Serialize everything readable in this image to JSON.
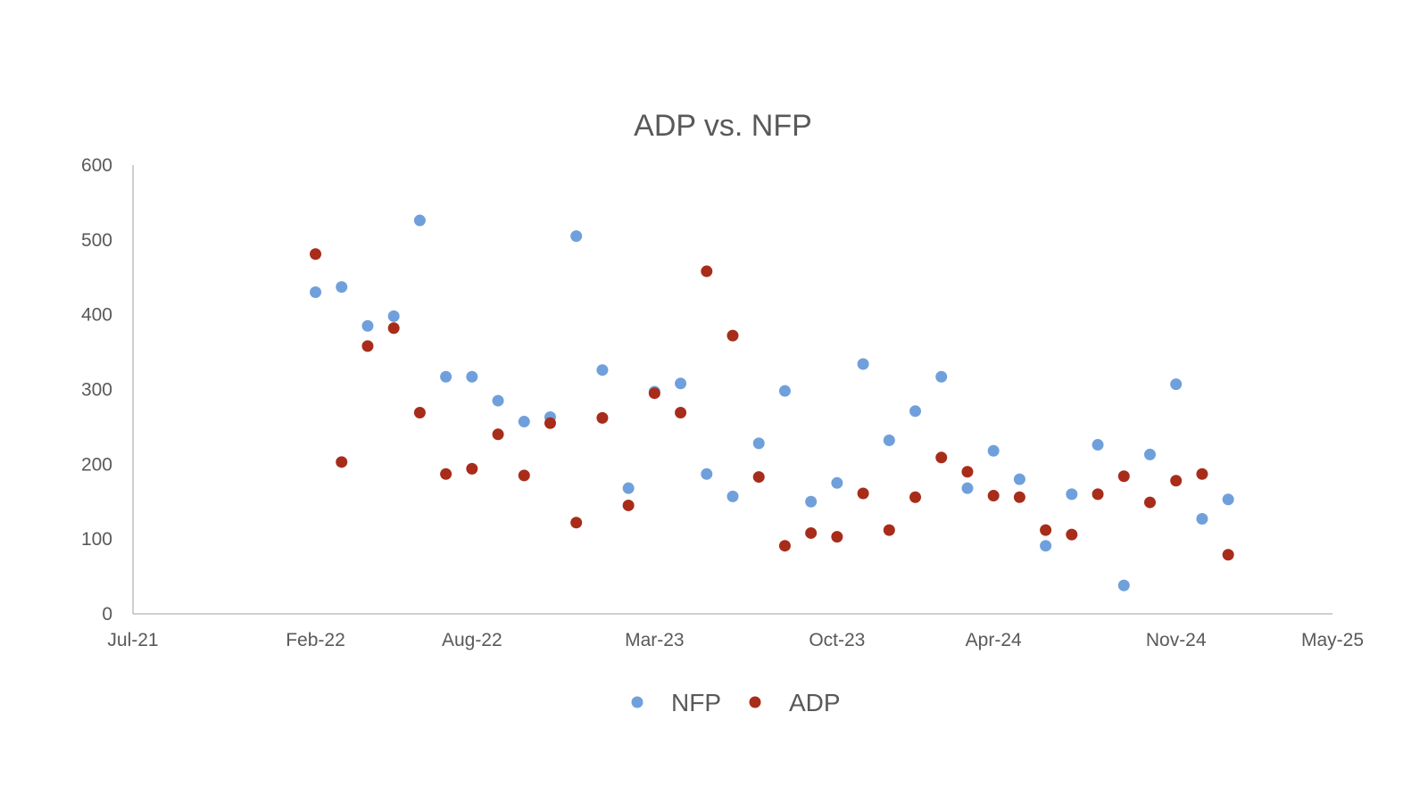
{
  "chart_data": {
    "type": "scatter",
    "title": "ADP vs. NFP",
    "xlabel": "",
    "ylabel": "",
    "ylim": [
      0,
      600
    ],
    "yticks": [
      0,
      100,
      200,
      300,
      400,
      500,
      600
    ],
    "xlim": [
      0,
      46
    ],
    "x_unit": "months since Jul-21",
    "xticks": [
      {
        "value": 0,
        "label": "Jul-21"
      },
      {
        "value": 7,
        "label": "Feb-22"
      },
      {
        "value": 13,
        "label": "Aug-22"
      },
      {
        "value": 20,
        "label": "Mar-23"
      },
      {
        "value": 27,
        "label": "Oct-23"
      },
      {
        "value": 33,
        "label": "Apr-24"
      },
      {
        "value": 40,
        "label": "Nov-24"
      },
      {
        "value": 46,
        "label": "May-25"
      }
    ],
    "grid": false,
    "legend": "bottom-center",
    "series": [
      {
        "name": "NFP",
        "color": "#6fa0dc",
        "points": [
          {
            "x": 7,
            "y": 430
          },
          {
            "x": 8,
            "y": 437
          },
          {
            "x": 9,
            "y": 385
          },
          {
            "x": 10,
            "y": 398
          },
          {
            "x": 11,
            "y": 526
          },
          {
            "x": 12,
            "y": 317
          },
          {
            "x": 13,
            "y": 317
          },
          {
            "x": 14,
            "y": 285
          },
          {
            "x": 15,
            "y": 257
          },
          {
            "x": 16,
            "y": 263
          },
          {
            "x": 17,
            "y": 505
          },
          {
            "x": 18,
            "y": 326
          },
          {
            "x": 19,
            "y": 168
          },
          {
            "x": 20,
            "y": 297
          },
          {
            "x": 21,
            "y": 308
          },
          {
            "x": 22,
            "y": 187
          },
          {
            "x": 23,
            "y": 157
          },
          {
            "x": 24,
            "y": 228
          },
          {
            "x": 25,
            "y": 298
          },
          {
            "x": 26,
            "y": 150
          },
          {
            "x": 27,
            "y": 175
          },
          {
            "x": 28,
            "y": 334
          },
          {
            "x": 29,
            "y": 232
          },
          {
            "x": 30,
            "y": 271
          },
          {
            "x": 31,
            "y": 317
          },
          {
            "x": 32,
            "y": 168
          },
          {
            "x": 33,
            "y": 218
          },
          {
            "x": 34,
            "y": 180
          },
          {
            "x": 35,
            "y": 91
          },
          {
            "x": 36,
            "y": 160
          },
          {
            "x": 37,
            "y": 226
          },
          {
            "x": 38,
            "y": 38
          },
          {
            "x": 39,
            "y": 213
          },
          {
            "x": 40,
            "y": 307
          },
          {
            "x": 41,
            "y": 127
          },
          {
            "x": 42,
            "y": 153
          }
        ]
      },
      {
        "name": "ADP",
        "color": "#a82c1a",
        "points": [
          {
            "x": 7,
            "y": 481
          },
          {
            "x": 8,
            "y": 203
          },
          {
            "x": 9,
            "y": 358
          },
          {
            "x": 10,
            "y": 382
          },
          {
            "x": 11,
            "y": 269
          },
          {
            "x": 12,
            "y": 187
          },
          {
            "x": 13,
            "y": 194
          },
          {
            "x": 14,
            "y": 240
          },
          {
            "x": 15,
            "y": 185
          },
          {
            "x": 16,
            "y": 255
          },
          {
            "x": 17,
            "y": 122
          },
          {
            "x": 18,
            "y": 262
          },
          {
            "x": 19,
            "y": 145
          },
          {
            "x": 20,
            "y": 295
          },
          {
            "x": 21,
            "y": 269
          },
          {
            "x": 22,
            "y": 458
          },
          {
            "x": 23,
            "y": 372
          },
          {
            "x": 24,
            "y": 183
          },
          {
            "x": 25,
            "y": 91
          },
          {
            "x": 26,
            "y": 108
          },
          {
            "x": 27,
            "y": 103
          },
          {
            "x": 28,
            "y": 161
          },
          {
            "x": 29,
            "y": 112
          },
          {
            "x": 30,
            "y": 156
          },
          {
            "x": 31,
            "y": 209
          },
          {
            "x": 32,
            "y": 190
          },
          {
            "x": 33,
            "y": 158
          },
          {
            "x": 34,
            "y": 156
          },
          {
            "x": 35,
            "y": 112
          },
          {
            "x": 36,
            "y": 106
          },
          {
            "x": 37,
            "y": 160
          },
          {
            "x": 38,
            "y": 184
          },
          {
            "x": 39,
            "y": 149
          },
          {
            "x": 40,
            "y": 178
          },
          {
            "x": 41,
            "y": 187
          },
          {
            "x": 42,
            "y": 79
          }
        ]
      }
    ]
  }
}
